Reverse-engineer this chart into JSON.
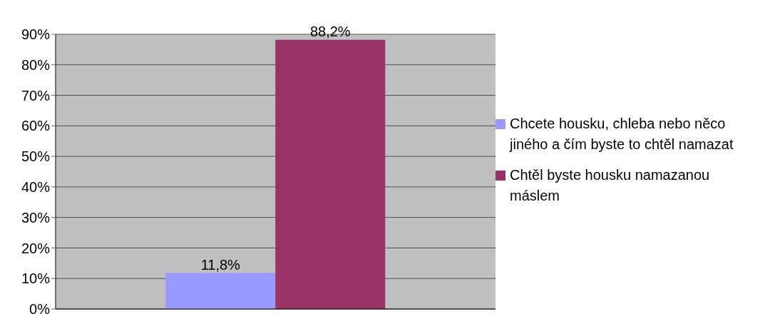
{
  "chart_data": {
    "type": "bar",
    "categories": [
      null
    ],
    "series": [
      {
        "name": "Chcete housku, chleba nebo něco jiného a čím byste to chtěl namazat",
        "color": "#9999ff",
        "values": [
          11.8
        ],
        "value_labels": [
          "11,8%"
        ]
      },
      {
        "name": "Chtěl byste housku namazanou máslem",
        "color": "#993366",
        "values": [
          88.2
        ],
        "value_labels": [
          "88,2%"
        ]
      }
    ],
    "ylim": [
      0,
      90
    ],
    "yticks": [
      {
        "value": 0,
        "label": "0%"
      },
      {
        "value": 10,
        "label": "10%"
      },
      {
        "value": 20,
        "label": "20%"
      },
      {
        "value": 30,
        "label": "30%"
      },
      {
        "value": 40,
        "label": "40%"
      },
      {
        "value": 50,
        "label": "50%"
      },
      {
        "value": 60,
        "label": "60%"
      },
      {
        "value": 70,
        "label": "70%"
      },
      {
        "value": 80,
        "label": "80%"
      },
      {
        "value": 90,
        "label": "90%"
      }
    ],
    "grid": "y",
    "legend": "right"
  }
}
